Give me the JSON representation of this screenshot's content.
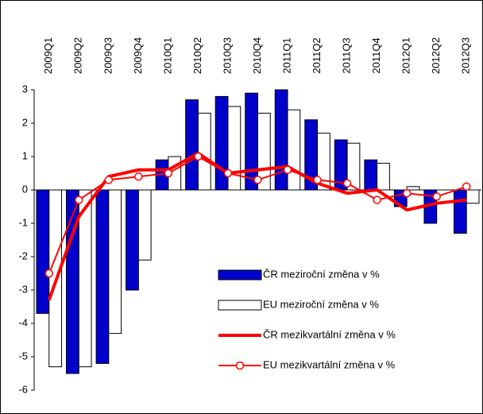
{
  "chart_data": {
    "type": "bar-line",
    "categories": [
      "2009Q1",
      "2009Q2",
      "2009Q3",
      "2009Q4",
      "2010Q1",
      "2010Q2",
      "2010Q3",
      "2010Q4",
      "2011Q1",
      "2011Q2",
      "2011Q3",
      "2011Q4",
      "2012Q1",
      "2012Q2",
      "2012Q3"
    ],
    "series": [
      {
        "name": "ČR meziroční změna v %",
        "kind": "bar",
        "color": "#0000cc",
        "values": [
          -3.7,
          -5.5,
          -5.2,
          -3.0,
          0.9,
          2.7,
          2.8,
          2.9,
          3.0,
          2.1,
          1.5,
          0.9,
          -0.5,
          -1.0,
          -1.3
        ]
      },
      {
        "name": "EU meziroční změna v %",
        "kind": "bar",
        "color": "#ffffff",
        "values": [
          -5.3,
          -5.3,
          -4.3,
          -2.1,
          1.0,
          2.3,
          2.5,
          2.3,
          2.4,
          1.7,
          1.4,
          0.8,
          0.1,
          0.0,
          -0.4
        ]
      },
      {
        "name": "ČR mezikvartální změna v %",
        "kind": "line",
        "color": "#ff0000",
        "values": [
          -3.3,
          -0.8,
          0.4,
          0.6,
          0.6,
          1.1,
          0.5,
          0.6,
          0.7,
          0.2,
          -0.1,
          0.0,
          -0.6,
          -0.4,
          -0.3
        ]
      },
      {
        "name": "EU mezikvartální změna v %",
        "kind": "line-marker",
        "color": "#ff0000",
        "values": [
          -2.5,
          -0.3,
          0.3,
          0.4,
          0.5,
          1.0,
          0.5,
          0.3,
          0.6,
          0.3,
          0.2,
          -0.3,
          -0.1,
          -0.2,
          0.1
        ]
      }
    ],
    "ylim": [
      -6,
      3
    ],
    "yticks": [
      -6,
      -5,
      -4,
      -3,
      -2,
      -1,
      0,
      1,
      2,
      3
    ]
  }
}
